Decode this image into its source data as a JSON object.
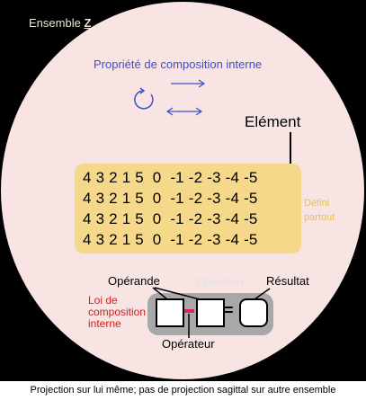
{
  "set_title": {
    "prefix": "Ensemble",
    "symbol": "Z"
  },
  "property_title": "Propriété de composition interne",
  "element_label": "Elément",
  "grid_rows": [
    "4 3 2 1 5  0  -1 -2 -3 -4 -5",
    "4 3 2 1 5  0  -1 -2 -3 -4 -5",
    "4 3 2 1 5  0  -1 -2 -3 -4 -5",
    "4 3 2 1 5  0  -1 -2 -3 -4 -5"
  ],
  "defini": {
    "line1": "Défini",
    "line2": "partout"
  },
  "operande_label": "Opérande",
  "operation_label": "Opération",
  "resultat_label": "Résultat",
  "loi_label": "Loi de composition interne",
  "operateur_label": "Opérateur",
  "equals": "=",
  "caption": "Projection sur lui même; pas de projection sagittal sur autre ensemble",
  "icons": [
    "cycle-icon",
    "arrow-right-icon",
    "arrow-both-icon"
  ],
  "colors": {
    "background": "#000000",
    "disc": "#f9e4e4",
    "grid_block": "#f6d88a",
    "title_blue": "#3b50c8",
    "loi_red": "#d02020",
    "operator_pink": "#e0245e",
    "panel_grey": "#a8a8a8"
  }
}
